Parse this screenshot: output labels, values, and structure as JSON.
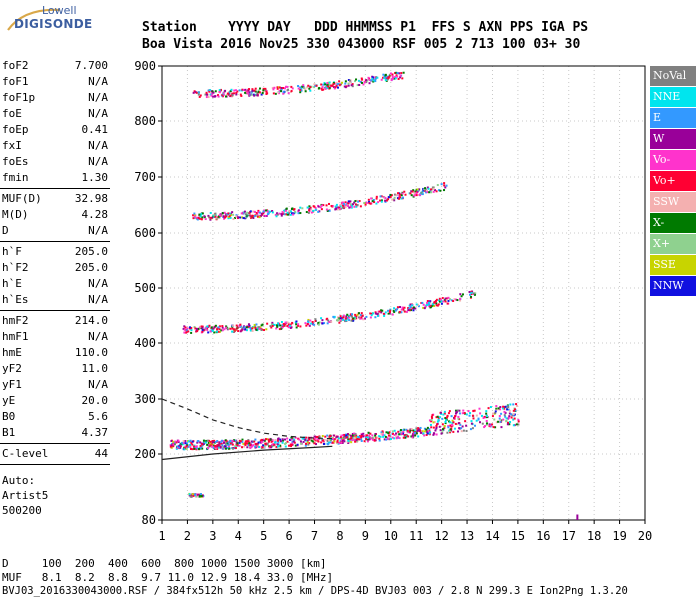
{
  "logo": {
    "line1": "Lowell",
    "line2": "DIGISONDE"
  },
  "header": {
    "labels": [
      "Station",
      "YYYY",
      "DAY",
      "DDD",
      "HHMMSS",
      "P1",
      "FFS",
      "S",
      "AXN",
      "PPS",
      "IGA",
      "PS"
    ],
    "values": [
      "Boa Vista",
      "2016",
      "Nov25",
      "330",
      "043000",
      "RSF",
      "005",
      "2",
      "713",
      "100",
      "03+",
      "30"
    ],
    "line1": "Station    YYYY DAY   DDD HHMMSS P1  FFS S AXN PPS IGA PS",
    "line2": "Boa Vista 2016 Nov25 330 043000 RSF 005 2 713 100 03+ 30"
  },
  "params": {
    "group1": [
      {
        "name": "foF2",
        "value": "7.700"
      },
      {
        "name": "foF1",
        "value": "N/A"
      },
      {
        "name": "foF1p",
        "value": "N/A"
      },
      {
        "name": "foE",
        "value": "N/A"
      },
      {
        "name": "foEp",
        "value": "0.41"
      },
      {
        "name": "fxI",
        "value": "N/A"
      },
      {
        "name": "foEs",
        "value": "N/A"
      },
      {
        "name": "fmin",
        "value": "1.30"
      }
    ],
    "group2": [
      {
        "name": "MUF(D)",
        "value": "32.98"
      },
      {
        "name": "M(D)",
        "value": "4.28"
      },
      {
        "name": "D",
        "value": "N/A"
      }
    ],
    "group3": [
      {
        "name": "h`F",
        "value": "205.0"
      },
      {
        "name": "h`F2",
        "value": "205.0"
      },
      {
        "name": "h`E",
        "value": "N/A"
      },
      {
        "name": "h`Es",
        "value": "N/A"
      }
    ],
    "group4": [
      {
        "name": "hmF2",
        "value": "214.0"
      },
      {
        "name": "hmF1",
        "value": "N/A"
      },
      {
        "name": "hmE",
        "value": "110.0"
      },
      {
        "name": "yF2",
        "value": "11.0"
      },
      {
        "name": "yF1",
        "value": "N/A"
      },
      {
        "name": "yE",
        "value": "20.0"
      },
      {
        "name": "B0",
        "value": "5.6"
      },
      {
        "name": "B1",
        "value": "4.37"
      }
    ],
    "group5": [
      {
        "name": "C-level",
        "value": "44"
      }
    ],
    "auto_lines": [
      "Auto:",
      "Artist5",
      "500200"
    ]
  },
  "legend": [
    {
      "label": "NoVal",
      "color": "#808080"
    },
    {
      "label": "NNE",
      "color": "#00e5ee"
    },
    {
      "label": "E",
      "color": "#3399ff"
    },
    {
      "label": "W",
      "color": "#990099"
    },
    {
      "label": "Vo-",
      "color": "#ff33cc"
    },
    {
      "label": "Vo+",
      "color": "#ff0033"
    },
    {
      "label": "SSW",
      "color": "#f4b0b0"
    },
    {
      "label": "X-",
      "color": "#007a00"
    },
    {
      "label": "X+",
      "color": "#8fd18f"
    },
    {
      "label": "SSE",
      "color": "#c8d400"
    },
    {
      "label": "NNW",
      "color": "#1010e0"
    }
  ],
  "footer": {
    "line1": "D     100  200  400  600  800 1000 1500 3000 [km]",
    "line2": "MUF   8.1  8.2  8.8  9.7 11.0 12.9 18.4 33.0 [MHz]",
    "line3": "BVJ03_2016330043000.RSF / 384fx512h 50 kHz 2.5 km / DPS-4D BVJ03 003 / 2.8 N 299.3 E Ion2Png 1.3.20"
  },
  "chart_data": {
    "type": "scatter",
    "title": "",
    "xlabel": "",
    "ylabel": "",
    "xlim": [
      1,
      20
    ],
    "ylim": [
      80,
      900
    ],
    "y_scale": "nonlinear (ionogram virtual height)",
    "x_ticks": [
      "1",
      "2",
      "3",
      "4",
      "5",
      "6",
      "7",
      "8",
      "9",
      "10",
      "11",
      "12",
      "13",
      "14",
      "15",
      "16",
      "17",
      "18",
      "19",
      "20"
    ],
    "y_ticks": [
      "80",
      "200",
      "300",
      "400",
      "500",
      "600",
      "700",
      "800",
      "900"
    ],
    "grid": true,
    "legend_position": "right",
    "traces": [
      {
        "name": "F2 1st hop",
        "x_range": [
          1.3,
          15.0
        ],
        "y_start": 210,
        "y_end": 255
      },
      {
        "name": "F2 2nd hop",
        "x_range": [
          1.8,
          13.3
        ],
        "y_start": 420,
        "y_end": 485
      },
      {
        "name": "F2 3rd hop",
        "x_range": [
          2.0,
          12.2
        ],
        "y_start": 625,
        "y_end": 680
      },
      {
        "name": "F2 4th hop",
        "x_range": [
          2.2,
          10.5
        ],
        "y_start": 845,
        "y_end": 880
      },
      {
        "name": "low echoes",
        "x_range": [
          2.0,
          2.6
        ],
        "y_start": 124,
        "y_end": 124
      }
    ],
    "profile_curve": {
      "x": [
        1.0,
        3.0,
        5.0,
        7.0,
        7.7
      ],
      "y": [
        190,
        200,
        207,
        212,
        214
      ]
    },
    "profile_dashed": {
      "x": [
        1.0,
        2.0,
        3.0,
        4.0,
        5.0,
        6.0,
        7.0,
        7.7
      ],
      "y": [
        300,
        282,
        262,
        248,
        238,
        232,
        229,
        228
      ]
    }
  }
}
